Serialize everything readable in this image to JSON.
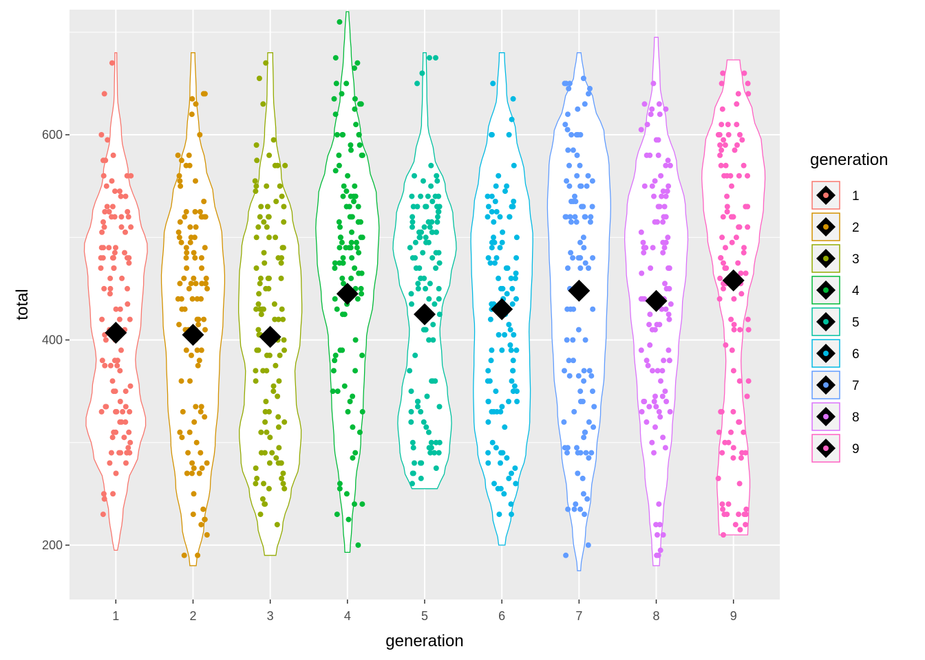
{
  "chart_data": {
    "type": "violin",
    "xlabel": "generation",
    "ylabel": "total",
    "categories": [
      "1",
      "2",
      "3",
      "4",
      "5",
      "6",
      "7",
      "8",
      "9"
    ],
    "y_ticks": [
      200,
      400,
      600
    ],
    "ylim": [
      147,
      722
    ],
    "grid": true,
    "legend": {
      "title": "generation",
      "position": "right",
      "entries": [
        "1",
        "2",
        "3",
        "4",
        "5",
        "6",
        "7",
        "8",
        "9"
      ]
    },
    "colors": [
      "#F8766D",
      "#D39200",
      "#93AA00",
      "#00BA38",
      "#00C19F",
      "#00B9E3",
      "#619CFF",
      "#DB72FB",
      "#FF61C3"
    ],
    "series": [
      {
        "name": "1",
        "min": 195,
        "max": 680,
        "mean": 407,
        "density": [
          [
            195,
            0.05
          ],
          [
            200,
            0.1
          ],
          [
            230,
            0.22
          ],
          [
            260,
            0.38
          ],
          [
            290,
            0.72
          ],
          [
            320,
            0.95
          ],
          [
            350,
            0.75
          ],
          [
            380,
            0.62
          ],
          [
            420,
            0.8
          ],
          [
            460,
            0.88
          ],
          [
            490,
            1.0
          ],
          [
            520,
            0.75
          ],
          [
            560,
            0.4
          ],
          [
            600,
            0.18
          ],
          [
            640,
            0.05
          ],
          [
            680,
            0.03
          ]
        ]
      },
      {
        "name": "2",
        "min": 180,
        "max": 680,
        "mean": 405,
        "density": [
          [
            180,
            0.1
          ],
          [
            220,
            0.35
          ],
          [
            260,
            0.55
          ],
          [
            300,
            0.7
          ],
          [
            340,
            0.8
          ],
          [
            380,
            0.84
          ],
          [
            420,
            0.95
          ],
          [
            460,
            1.0
          ],
          [
            500,
            0.92
          ],
          [
            540,
            0.65
          ],
          [
            570,
            0.4
          ],
          [
            600,
            0.2
          ],
          [
            640,
            0.1
          ],
          [
            680,
            0.06
          ]
        ]
      },
      {
        "name": "3",
        "min": 190,
        "max": 680,
        "mean": 403,
        "density": [
          [
            190,
            0.18
          ],
          [
            220,
            0.4
          ],
          [
            250,
            0.65
          ],
          [
            280,
            0.92
          ],
          [
            310,
            0.98
          ],
          [
            340,
            0.82
          ],
          [
            370,
            0.78
          ],
          [
            400,
            0.95
          ],
          [
            430,
            1.0
          ],
          [
            460,
            0.98
          ],
          [
            490,
            0.9
          ],
          [
            520,
            0.7
          ],
          [
            560,
            0.35
          ],
          [
            600,
            0.18
          ],
          [
            640,
            0.1
          ],
          [
            680,
            0.08
          ]
        ]
      },
      {
        "name": "4",
        "min": 193,
        "max": 720,
        "mean": 445,
        "density": [
          [
            193,
            0.08
          ],
          [
            220,
            0.14
          ],
          [
            260,
            0.26
          ],
          [
            300,
            0.42
          ],
          [
            340,
            0.5
          ],
          [
            370,
            0.54
          ],
          [
            400,
            0.6
          ],
          [
            440,
            0.82
          ],
          [
            480,
            0.96
          ],
          [
            510,
            1.0
          ],
          [
            540,
            0.92
          ],
          [
            570,
            0.68
          ],
          [
            600,
            0.42
          ],
          [
            640,
            0.22
          ],
          [
            680,
            0.12
          ],
          [
            700,
            0.08
          ],
          [
            720,
            0.04
          ]
        ]
      },
      {
        "name": "5",
        "min": 255,
        "max": 680,
        "mean": 425,
        "density": [
          [
            255,
            0.4
          ],
          [
            270,
            0.62
          ],
          [
            290,
            0.78
          ],
          [
            320,
            0.85
          ],
          [
            350,
            0.72
          ],
          [
            380,
            0.55
          ],
          [
            410,
            0.48
          ],
          [
            430,
            0.55
          ],
          [
            460,
            0.82
          ],
          [
            490,
            1.0
          ],
          [
            520,
            0.9
          ],
          [
            550,
            0.65
          ],
          [
            580,
            0.3
          ],
          [
            610,
            0.1
          ],
          [
            640,
            0.07
          ],
          [
            680,
            0.05
          ]
        ]
      },
      {
        "name": "6",
        "min": 200,
        "max": 680,
        "mean": 430,
        "density": [
          [
            200,
            0.1
          ],
          [
            230,
            0.3
          ],
          [
            260,
            0.52
          ],
          [
            290,
            0.76
          ],
          [
            320,
            0.88
          ],
          [
            350,
            0.9
          ],
          [
            380,
            0.88
          ],
          [
            410,
            0.86
          ],
          [
            440,
            0.92
          ],
          [
            470,
            0.96
          ],
          [
            500,
            0.98
          ],
          [
            530,
            0.88
          ],
          [
            560,
            0.72
          ],
          [
            600,
            0.45
          ],
          [
            640,
            0.15
          ],
          [
            680,
            0.08
          ]
        ]
      },
      {
        "name": "7",
        "min": 175,
        "max": 680,
        "mean": 448,
        "density": [
          [
            175,
            0.05
          ],
          [
            210,
            0.2
          ],
          [
            250,
            0.38
          ],
          [
            290,
            0.55
          ],
          [
            330,
            0.68
          ],
          [
            370,
            0.8
          ],
          [
            410,
            0.86
          ],
          [
            450,
            0.9
          ],
          [
            490,
            0.95
          ],
          [
            530,
            1.0
          ],
          [
            570,
            0.95
          ],
          [
            600,
            0.8
          ],
          [
            630,
            0.48
          ],
          [
            660,
            0.15
          ],
          [
            680,
            0.06
          ]
        ]
      },
      {
        "name": "8",
        "min": 180,
        "max": 695,
        "mean": 438,
        "density": [
          [
            180,
            0.1
          ],
          [
            200,
            0.14
          ],
          [
            230,
            0.22
          ],
          [
            270,
            0.36
          ],
          [
            310,
            0.5
          ],
          [
            350,
            0.6
          ],
          [
            390,
            0.7
          ],
          [
            430,
            0.82
          ],
          [
            470,
            0.95
          ],
          [
            500,
            1.0
          ],
          [
            530,
            0.92
          ],
          [
            570,
            0.65
          ],
          [
            610,
            0.32
          ],
          [
            650,
            0.12
          ],
          [
            695,
            0.06
          ]
        ]
      },
      {
        "name": "9",
        "min": 210,
        "max": 673,
        "mean": 458,
        "density": [
          [
            210,
            0.45
          ],
          [
            230,
            0.48
          ],
          [
            260,
            0.52
          ],
          [
            290,
            0.46
          ],
          [
            320,
            0.36
          ],
          [
            350,
            0.28
          ],
          [
            380,
            0.24
          ],
          [
            410,
            0.3
          ],
          [
            440,
            0.45
          ],
          [
            470,
            0.65
          ],
          [
            500,
            0.82
          ],
          [
            530,
            0.95
          ],
          [
            560,
            1.0
          ],
          [
            590,
            0.9
          ],
          [
            620,
            0.62
          ],
          [
            650,
            0.3
          ],
          [
            673,
            0.2
          ]
        ]
      }
    ]
  }
}
